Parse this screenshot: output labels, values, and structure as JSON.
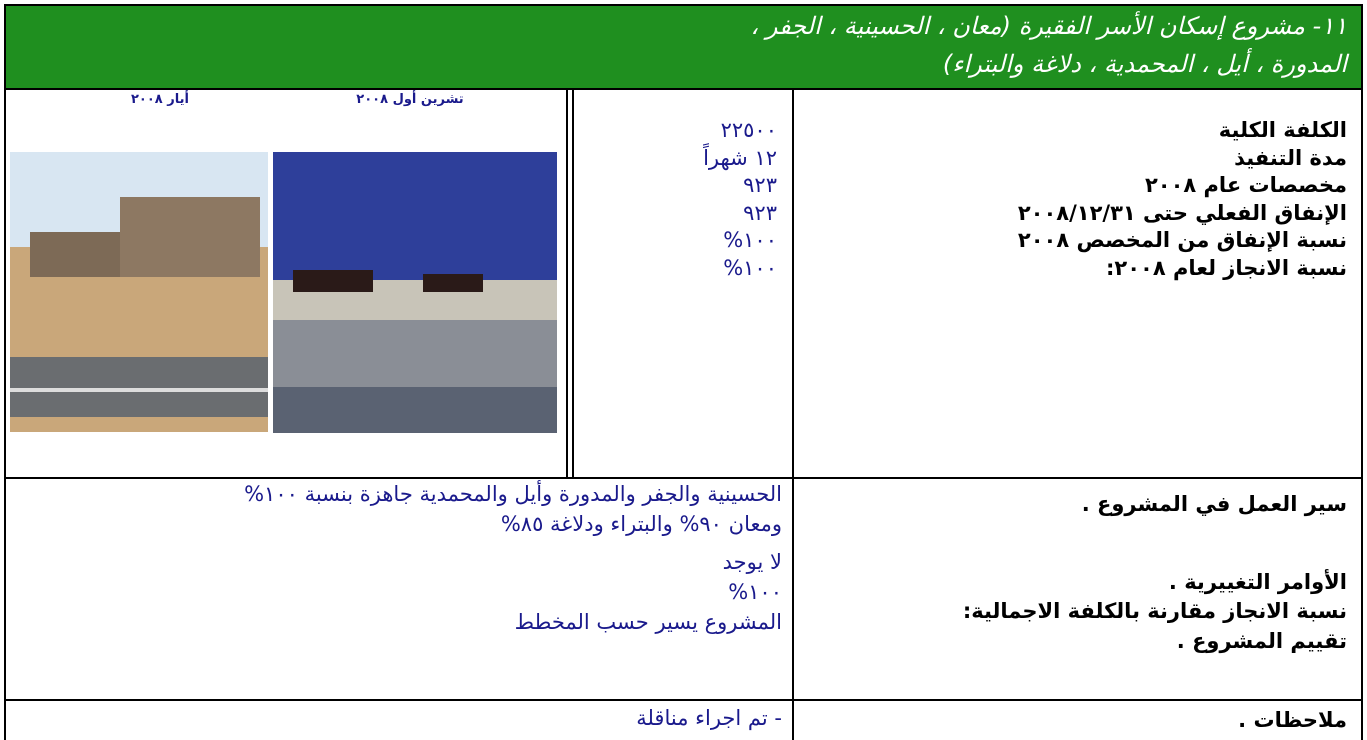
{
  "header": {
    "title_lines": [
      "١١- مشروع إسكان الأسر الفقيرة (معان ، الحسينية ، الجفر ،",
      "المدورة ، أيل ، المحمدية ، دلاغة والبتراء)"
    ]
  },
  "details": {
    "labels": [
      "الكلفة الكلية",
      "مدة التنفيذ",
      "مخصصات عام ٢٠٠٨",
      "الإنفاق الفعلي حتى ٢٠٠٨/١٢/٣١",
      "نسبة الإنفاق من المخصص ٢٠٠٨",
      "نسبة الانجاز لعام ٢٠٠٨:"
    ],
    "values": [
      "٢٢٥٠٠",
      "١٢ شهراً",
      "٩٢٣",
      "٩٢٣",
      "١٠٠%",
      "١٠٠%"
    ]
  },
  "photos": {
    "captions": [
      "تشرين أول ٢٠٠٨",
      "أيار ٢٠٠٨"
    ]
  },
  "progress": {
    "labels": [
      "سير العمل في المشروع .",
      "الأوامر التغييرية .",
      "نسبة الانجاز مقارنة بالكلفة الاجمالية:",
      "تقييم المشروع ."
    ],
    "values": [
      "الحسينية والجفر والمدورة وأيل والمحمدية جاهزة بنسبة ١٠٠%",
      "ومعان ٩٠% والبتراء ودلاغة ٨٥%",
      "لا يوجد",
      "١٠٠%",
      "المشروع يسير حسب المخطط"
    ]
  },
  "notes": {
    "label": "ملاحظات .",
    "value": "- تم اجراء مناقلة"
  }
}
